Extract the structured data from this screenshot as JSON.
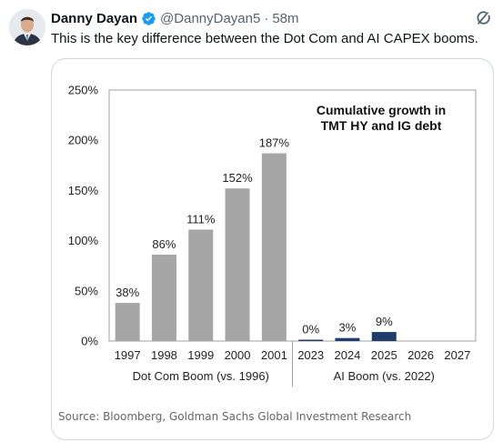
{
  "tweet": {
    "author_name": "Danny Dayan",
    "handle": "@DannyDayan5",
    "separator": "·",
    "time": "58m",
    "text": "This is the key difference between the Dot Com and AI CAPEX booms."
  },
  "chart_data": {
    "type": "bar",
    "title": "Cumulative growth in\nTMT HY and IG debt",
    "categories": [
      "1997",
      "1998",
      "1999",
      "2000",
      "2001",
      "2023",
      "2024",
      "2025",
      "2026",
      "2027"
    ],
    "values": [
      38,
      86,
      111,
      152,
      187,
      0,
      3,
      9,
      null,
      null
    ],
    "data_labels": [
      "38%",
      "86%",
      "111%",
      "152%",
      "187%",
      "0%",
      "3%",
      "9%",
      "",
      ""
    ],
    "groups": [
      {
        "label": "Dot Com Boom (vs. 1996)",
        "categories": [
          "1997",
          "1998",
          "1999",
          "2000",
          "2001"
        ],
        "color": "#a6a6a6"
      },
      {
        "label": "AI Boom (vs. 2022)",
        "categories": [
          "2023",
          "2024",
          "2025",
          "2026",
          "2027"
        ],
        "color": "#1f3e6e"
      }
    ],
    "yticks": [
      "0%",
      "50%",
      "100%",
      "150%",
      "200%",
      "250%"
    ],
    "ylim": [
      0,
      250
    ],
    "grid": false
  },
  "source": "Source: Bloomberg, Goldman Sachs Global Investment Research",
  "icons": {
    "verified": "verified-badge-icon",
    "grok": "grok-icon"
  },
  "colors": {
    "verified": "#1d9bf0",
    "muted": "#536471"
  }
}
